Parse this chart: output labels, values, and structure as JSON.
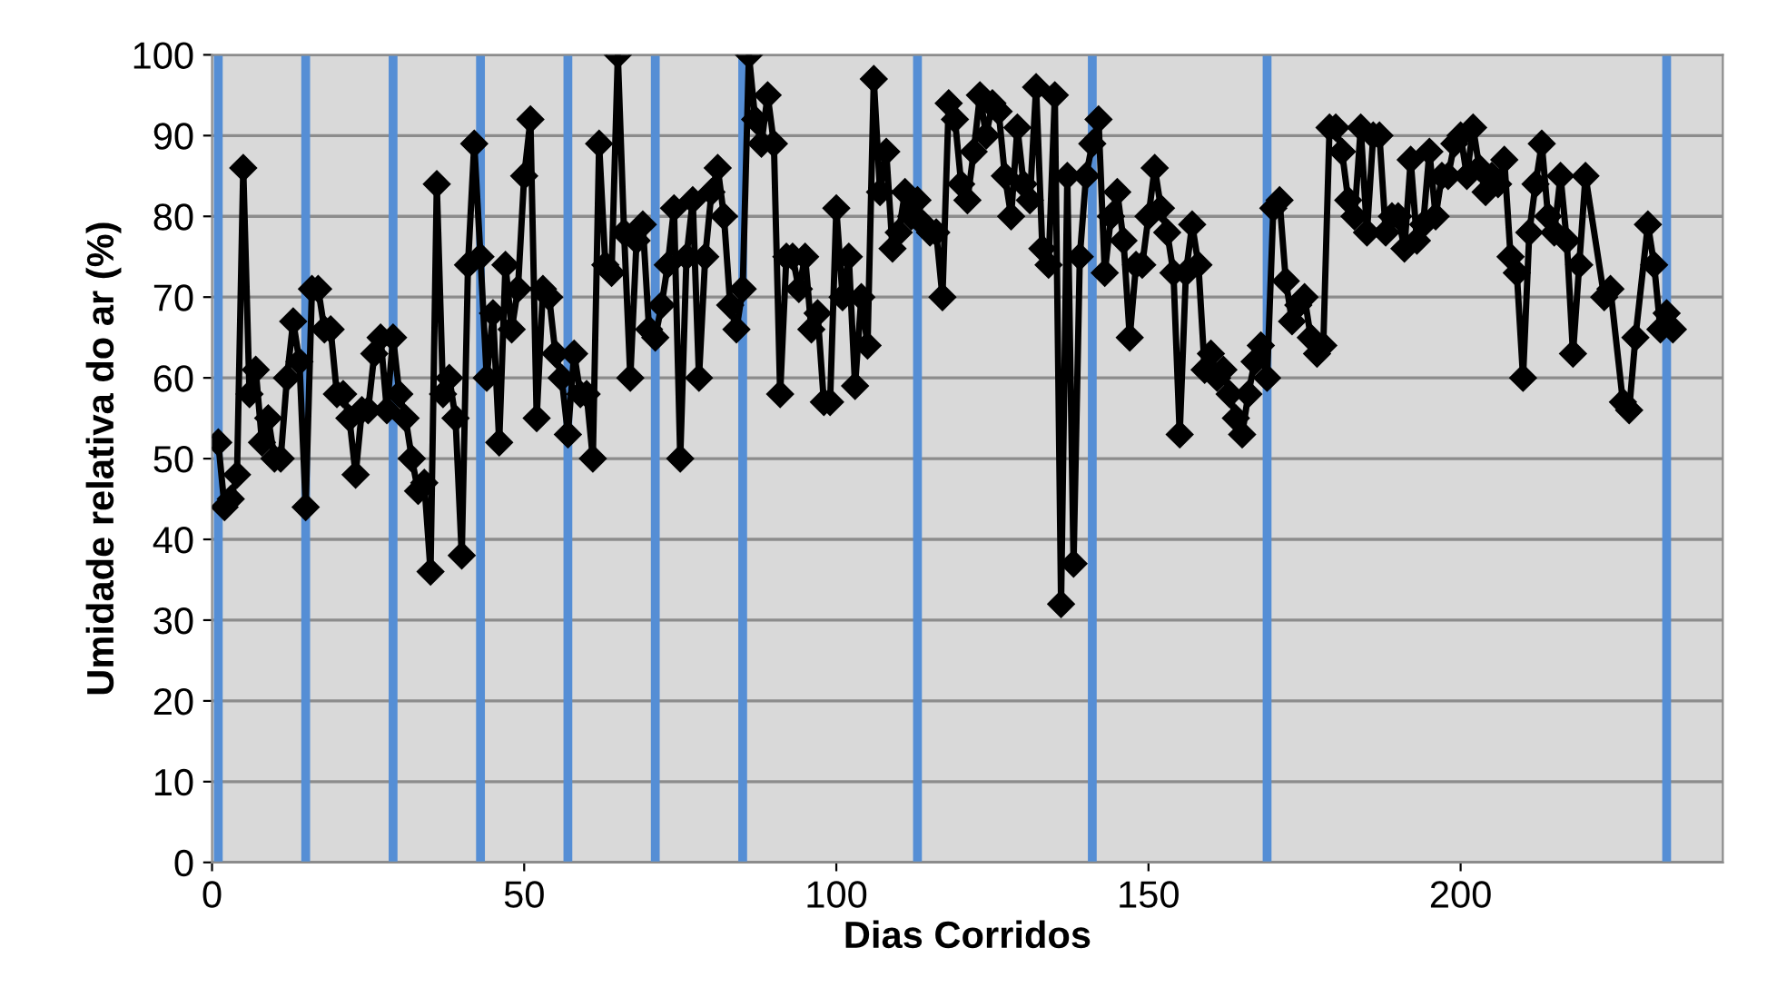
{
  "chart_data": {
    "type": "line",
    "xlabel": "Dias Corridos",
    "ylabel": "Umidade relativa do ar (%)",
    "xlim": [
      0,
      242
    ],
    "xticks": [
      0,
      50,
      100,
      150,
      200
    ],
    "ylim": [
      0,
      100
    ],
    "yticks": [
      0,
      10,
      20,
      30,
      40,
      50,
      60,
      70,
      80,
      90,
      100
    ],
    "grid": "y",
    "marker": "diamond",
    "line_style": "solid",
    "legend": false,
    "ref_lines": [
      {
        "axis": "x",
        "value": 1,
        "color": "#558ed5"
      },
      {
        "axis": "x",
        "value": 15,
        "color": "#558ed5"
      },
      {
        "axis": "x",
        "value": 29,
        "color": "#558ed5"
      },
      {
        "axis": "x",
        "value": 43,
        "color": "#558ed5"
      },
      {
        "axis": "x",
        "value": 57,
        "color": "#558ed5"
      },
      {
        "axis": "x",
        "value": 71,
        "color": "#558ed5"
      },
      {
        "axis": "x",
        "value": 85,
        "color": "#558ed5"
      },
      {
        "axis": "x",
        "value": 113,
        "color": "#558ed5"
      },
      {
        "axis": "x",
        "value": 141,
        "color": "#558ed5"
      },
      {
        "axis": "x",
        "value": 169,
        "color": "#558ed5"
      },
      {
        "axis": "x",
        "value": 233,
        "color": "#558ed5"
      }
    ],
    "series": [
      {
        "color": "#000000",
        "x": [
          1,
          2,
          3,
          4,
          5,
          6,
          7,
          8,
          9,
          10,
          11,
          12,
          13,
          14,
          15,
          16,
          17,
          18,
          19,
          20,
          21,
          22,
          23,
          24,
          25,
          26,
          27,
          28,
          29,
          30,
          31,
          32,
          33,
          34,
          35,
          36,
          37,
          38,
          39,
          40,
          41,
          42,
          43,
          44,
          45,
          46,
          47,
          48,
          49,
          50,
          51,
          52,
          53,
          54,
          55,
          56,
          57,
          58,
          59,
          60,
          61,
          62,
          63,
          64,
          65,
          66,
          67,
          68,
          69,
          70,
          71,
          72,
          73,
          74,
          75,
          76,
          77,
          78,
          79,
          80,
          81,
          82,
          83,
          84,
          85,
          86,
          87,
          88,
          89,
          90,
          91,
          92,
          93,
          94,
          95,
          96,
          97,
          98,
          99,
          100,
          101,
          102,
          103,
          104,
          105,
          106,
          107,
          108,
          109,
          110,
          111,
          112,
          113,
          114,
          115,
          116,
          117,
          118,
          119,
          120,
          121,
          122,
          123,
          124,
          125,
          126,
          127,
          128,
          129,
          130,
          131,
          132,
          133,
          134,
          135,
          136,
          137,
          138,
          139,
          140,
          141,
          142,
          143,
          144,
          145,
          146,
          147,
          148,
          149,
          150,
          151,
          152,
          153,
          154,
          155,
          156,
          157,
          158,
          159,
          160,
          161,
          162,
          163,
          164,
          165,
          166,
          167,
          168,
          169,
          170,
          171,
          172,
          173,
          174,
          175,
          176,
          177,
          178,
          179,
          180,
          181,
          182,
          183,
          184,
          185,
          186,
          187,
          188,
          189,
          190,
          191,
          192,
          193,
          194,
          195,
          196,
          197,
          198,
          199,
          200,
          201,
          202,
          203,
          204,
          205,
          206,
          207,
          208,
          209,
          210,
          211,
          212,
          213,
          214,
          215,
          216,
          217,
          218,
          219,
          220,
          223,
          224,
          226,
          227,
          228,
          230,
          231,
          232,
          233,
          234
        ],
        "values": [
          52,
          44,
          45,
          48,
          86,
          58,
          61,
          52,
          55,
          50,
          50,
          60,
          67,
          62,
          44,
          71,
          71,
          66,
          66,
          58,
          58,
          55,
          48,
          56,
          56,
          63,
          65,
          56,
          65,
          58,
          55,
          50,
          46,
          47,
          36,
          84,
          58,
          60,
          55,
          38,
          74,
          89,
          75,
          60,
          68,
          52,
          74,
          66,
          71,
          85,
          92,
          55,
          71,
          70,
          63,
          60,
          53,
          63,
          58,
          58,
          50,
          89,
          74,
          73,
          100,
          78,
          60,
          77,
          79,
          66,
          65,
          69,
          74,
          81,
          50,
          75,
          82,
          60,
          75,
          83,
          86,
          80,
          69,
          66,
          71,
          100,
          92,
          89,
          95,
          89,
          58,
          75,
          75,
          71,
          75,
          66,
          68,
          57,
          57,
          81,
          70,
          75,
          59,
          70,
          64,
          97,
          83,
          88,
          76,
          78,
          83,
          80,
          82,
          79,
          78,
          78,
          70,
          94,
          92,
          84,
          82,
          88,
          95,
          90,
          94,
          93,
          85,
          80,
          91,
          84,
          82,
          96,
          76,
          74,
          95,
          32,
          85,
          37,
          75,
          85,
          89,
          92,
          73,
          80,
          83,
          77,
          65,
          74,
          74,
          80,
          86,
          81,
          78,
          73,
          53,
          73,
          79,
          74,
          61,
          63,
          60,
          61,
          58,
          55,
          53,
          58,
          62,
          64,
          60,
          81,
          82,
          72,
          67,
          69,
          70,
          65,
          63,
          64,
          91,
          91,
          88,
          82,
          80,
          91,
          78,
          90,
          90,
          78,
          80,
          80,
          76,
          87,
          77,
          79,
          88,
          80,
          85,
          85,
          89,
          90,
          85,
          91,
          86,
          83,
          85,
          84,
          87,
          75,
          73,
          60,
          78,
          84,
          89,
          80,
          78,
          85,
          77,
          63,
          74,
          85,
          70,
          71,
          57,
          56,
          65,
          79,
          74,
          66,
          68,
          66
        ]
      }
    ]
  }
}
